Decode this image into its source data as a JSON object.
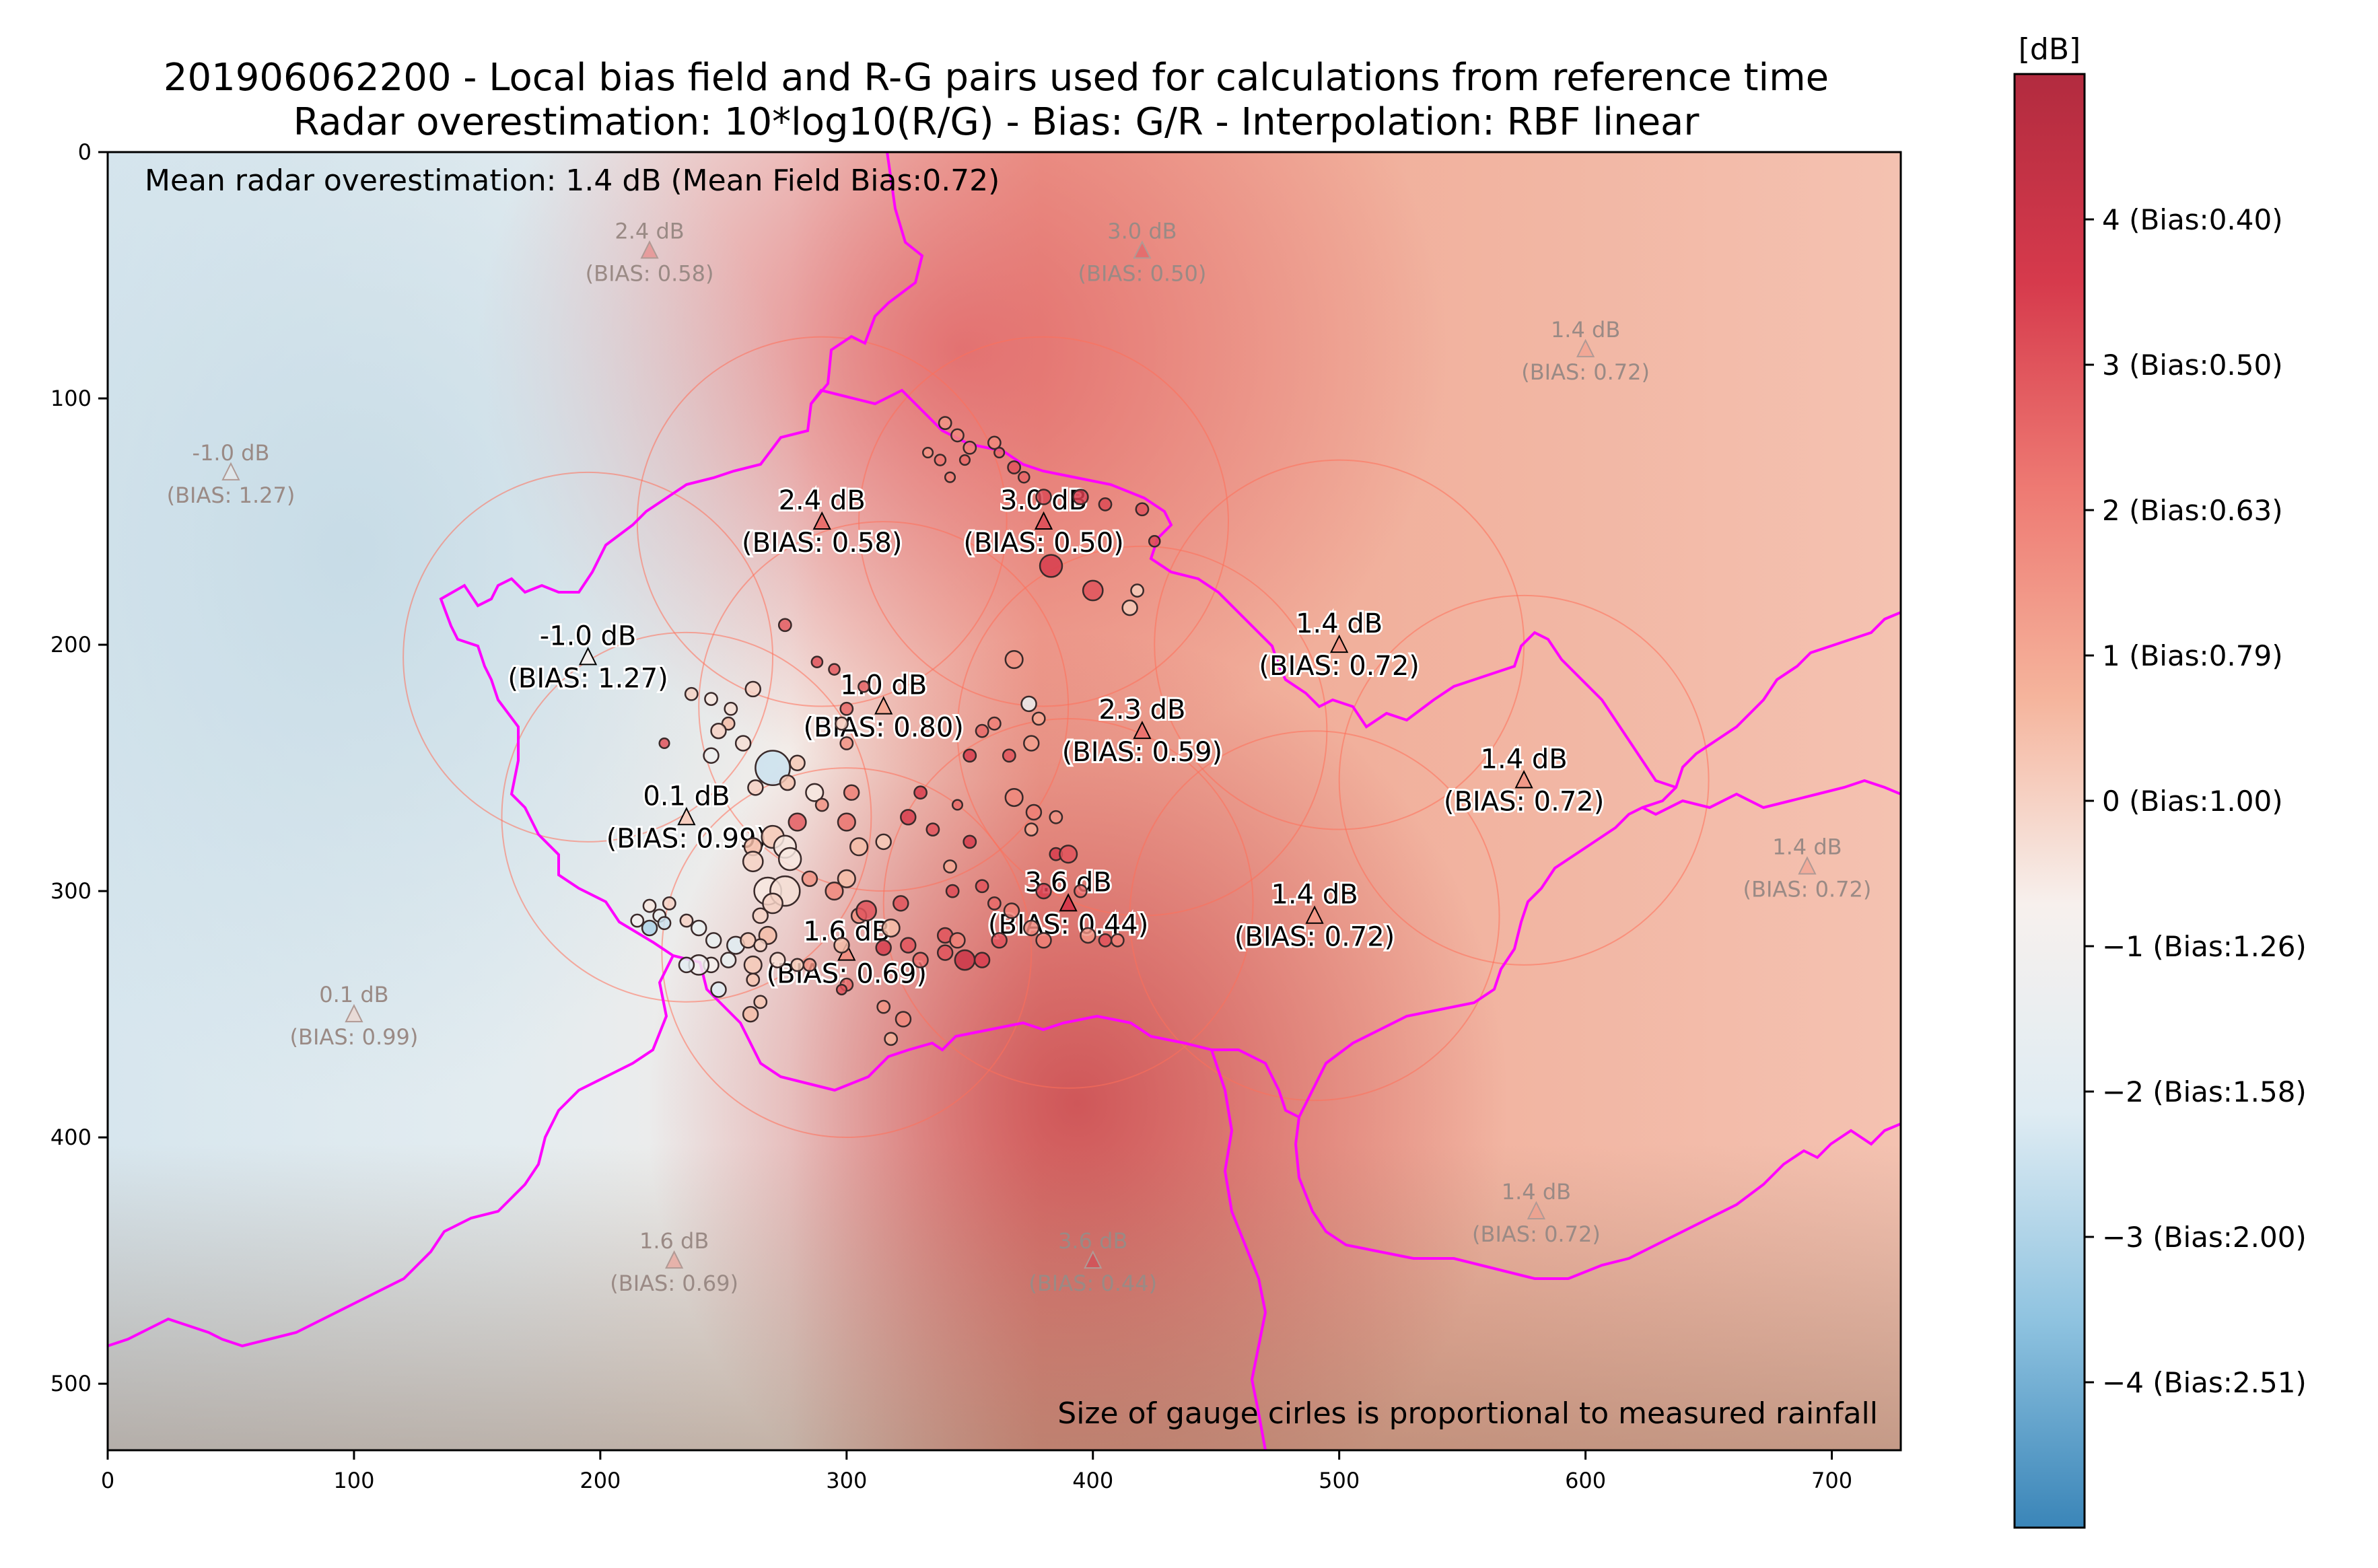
{
  "chart_data": {
    "type": "scatter",
    "title_line1": "201906062200 - Local bias field and R-G pairs used for calculations from reference time",
    "title_line2": "Radar overestimation: 10*log10(R/G) - Bias: G/R  - Interpolation: RBF linear",
    "mean_text": "Mean radar overestimation: 1.4 dB (Mean Field Bias:0.72)",
    "footnote": "Size of gauge cirles is proportional to measured rainfall",
    "xlim": [
      0,
      728
    ],
    "ylim": [
      527,
      0
    ],
    "xticks": [
      0,
      100,
      200,
      300,
      400,
      500,
      600,
      700
    ],
    "yticks": [
      0,
      100,
      200,
      300,
      400,
      500
    ],
    "colorbar": {
      "label": "[dB]",
      "range": [
        -5,
        5
      ],
      "ticks": [
        {
          "value": 4,
          "label": "4 (Bias:0.40)"
        },
        {
          "value": 3,
          "label": "3 (Bias:0.50)"
        },
        {
          "value": 2,
          "label": "2 (Bias:0.63)"
        },
        {
          "value": 1,
          "label": "1 (Bias:0.79)"
        },
        {
          "value": 0,
          "label": "0 (Bias:1.00)"
        },
        {
          "value": -1,
          "label": "−1 (Bias:1.26)"
        },
        {
          "value": -2,
          "label": "−2 (Bias:1.58)"
        },
        {
          "value": -3,
          "label": "−3 (Bias:2.00)"
        },
        {
          "value": -4,
          "label": "−4 (Bias:2.51)"
        }
      ],
      "stops": [
        "#3a85b8",
        "#8fc3e0",
        "#dfecf3",
        "#f7f0ed",
        "#f5b49c",
        "#ee7a73",
        "#d63a4c",
        "#b22b3f"
      ]
    },
    "radars": [
      {
        "x": 290,
        "y": 150,
        "db": "2.4 dB",
        "bias": "(BIAS: 0.58)",
        "value": 2.4,
        "active": true
      },
      {
        "x": 380,
        "y": 150,
        "db": "3.0 dB",
        "bias": "(BIAS: 0.50)",
        "value": 3.0,
        "active": true
      },
      {
        "x": 195,
        "y": 205,
        "db": "-1.0 dB",
        "bias": "(BIAS: 1.27)",
        "value": -1.0,
        "active": true
      },
      {
        "x": 315,
        "y": 225,
        "db": "1.0 dB",
        "bias": "(BIAS: 0.80)",
        "value": 1.0,
        "active": true
      },
      {
        "x": 500,
        "y": 200,
        "db": "1.4 dB",
        "bias": "(BIAS: 0.72)",
        "value": 1.4,
        "active": true
      },
      {
        "x": 420,
        "y": 235,
        "db": "2.3 dB",
        "bias": "(BIAS: 0.59)",
        "value": 2.3,
        "active": true
      },
      {
        "x": 575,
        "y": 255,
        "db": "1.4 dB",
        "bias": "(BIAS: 0.72)",
        "value": 1.4,
        "active": true
      },
      {
        "x": 235,
        "y": 270,
        "db": "0.1 dB",
        "bias": "(BIAS: 0.99)",
        "value": 0.1,
        "active": true
      },
      {
        "x": 390,
        "y": 305,
        "db": "3.6 dB",
        "bias": "(BIAS: 0.44)",
        "value": 3.6,
        "active": true
      },
      {
        "x": 490,
        "y": 310,
        "db": "1.4 dB",
        "bias": "(BIAS: 0.72)",
        "value": 1.4,
        "active": true
      },
      {
        "x": 300,
        "y": 325,
        "db": "1.6 dB",
        "bias": "(BIAS: 0.69)",
        "value": 1.6,
        "active": true
      },
      {
        "x": 220,
        "y": 40,
        "db": "2.4 dB",
        "bias": "(BIAS: 0.58)",
        "value": 2.4,
        "active": false
      },
      {
        "x": 420,
        "y": 40,
        "db": "3.0 dB",
        "bias": "(BIAS: 0.50)",
        "value": 3.0,
        "active": false
      },
      {
        "x": 600,
        "y": 80,
        "db": "1.4 dB",
        "bias": "(BIAS: 0.72)",
        "value": 1.4,
        "active": false
      },
      {
        "x": 50,
        "y": 130,
        "db": "-1.0 dB",
        "bias": "(BIAS: 1.27)",
        "value": -1.0,
        "active": false
      },
      {
        "x": 690,
        "y": 290,
        "db": "1.4 dB",
        "bias": "(BIAS: 0.72)",
        "value": 1.4,
        "active": false
      },
      {
        "x": 100,
        "y": 350,
        "db": "0.1 dB",
        "bias": "(BIAS: 0.99)",
        "value": 0.1,
        "active": false
      },
      {
        "x": 580,
        "y": 430,
        "db": "1.4 dB",
        "bias": "(BIAS: 0.72)",
        "value": 1.4,
        "active": false
      },
      {
        "x": 230,
        "y": 450,
        "db": "1.6 dB",
        "bias": "(BIAS: 0.69)",
        "value": 1.6,
        "active": false
      },
      {
        "x": 400,
        "y": 450,
        "db": "3.6 dB",
        "bias": "(BIAS: 0.44)",
        "value": 3.6,
        "active": false
      }
    ],
    "gauges": [
      [
        340,
        110,
        1.5,
        2.5
      ],
      [
        345,
        115,
        1.8,
        2.5
      ],
      [
        350,
        120,
        2.0,
        2.5
      ],
      [
        348,
        125,
        2.5,
        2.0
      ],
      [
        338,
        125,
        2.2,
        2.2
      ],
      [
        333,
        122,
        1.5,
        2.0
      ],
      [
        342,
        132,
        2.0,
        2.0
      ],
      [
        360,
        118,
        1.8,
        2.5
      ],
      [
        362,
        122,
        2.5,
        2.0
      ],
      [
        368,
        128,
        3.0,
        2.5
      ],
      [
        372,
        132,
        2.6,
        2.2
      ],
      [
        380,
        140,
        3.2,
        3.0
      ],
      [
        395,
        140,
        3.5,
        3.0
      ],
      [
        405,
        143,
        3.2,
        2.5
      ],
      [
        420,
        145,
        3.0,
        2.5
      ],
      [
        425,
        158,
        3.2,
        2.2
      ],
      [
        418,
        178,
        0.2,
        2.5
      ],
      [
        415,
        185,
        0.2,
        3.0
      ],
      [
        400,
        178,
        3.0,
        4.0
      ],
      [
        383,
        168,
        3.5,
        4.5
      ],
      [
        275,
        192,
        2.8,
        2.5
      ],
      [
        288,
        207,
        3.0,
        2.2
      ],
      [
        295,
        210,
        2.8,
        2.2
      ],
      [
        307,
        217,
        2.7,
        2.2
      ],
      [
        262,
        218,
        0.0,
        3.0
      ],
      [
        237,
        220,
        0.0,
        2.5
      ],
      [
        245,
        222,
        -0.5,
        2.5
      ],
      [
        253,
        226,
        -0.3,
        2.5
      ],
      [
        252,
        232,
        0.5,
        2.5
      ],
      [
        300,
        226,
        2.5,
        2.5
      ],
      [
        298,
        232,
        0.1,
        2.5
      ],
      [
        245,
        245,
        -1.3,
        3.0
      ],
      [
        248,
        235,
        0.0,
        3.0
      ],
      [
        258,
        240,
        -0.3,
        3.0
      ],
      [
        270,
        250,
        -2.5,
        7.0
      ],
      [
        280,
        248,
        0.2,
        3.0
      ],
      [
        300,
        240,
        1.5,
        2.5
      ],
      [
        302,
        260,
        2.0,
        3.0
      ],
      [
        276,
        256,
        0.3,
        3.0
      ],
      [
        263,
        258,
        0.0,
        3.0
      ],
      [
        287,
        260,
        -0.5,
        3.5
      ],
      [
        290,
        265,
        1.5,
        2.5
      ],
      [
        280,
        272,
        2.8,
        3.5
      ],
      [
        270,
        278,
        0.2,
        4.5
      ],
      [
        275,
        282,
        -0.5,
        4.5
      ],
      [
        262,
        282,
        0.5,
        3.5
      ],
      [
        277,
        287,
        -0.5,
        4.5
      ],
      [
        262,
        288,
        0.0,
        4.0
      ],
      [
        300,
        272,
        2.3,
        3.5
      ],
      [
        305,
        282,
        0.5,
        3.5
      ],
      [
        315,
        280,
        0.2,
        3.0
      ],
      [
        300,
        295,
        0.5,
        3.5
      ],
      [
        295,
        300,
        1.8,
        3.5
      ],
      [
        285,
        295,
        1.5,
        3.0
      ],
      [
        268,
        300,
        -0.5,
        5.5
      ],
      [
        275,
        300,
        -0.3,
        6.0
      ],
      [
        270,
        305,
        0.0,
        4.0
      ],
      [
        265,
        310,
        0.0,
        3.0
      ],
      [
        268,
        318,
        0.5,
        3.5
      ],
      [
        298,
        322,
        0.5,
        3.0
      ],
      [
        305,
        310,
        1.5,
        3.0
      ],
      [
        308,
        308,
        3.0,
        4.0
      ],
      [
        318,
        315,
        0.5,
        3.5
      ],
      [
        322,
        305,
        3.0,
        3.0
      ],
      [
        325,
        322,
        3.0,
        3.0
      ],
      [
        330,
        328,
        2.5,
        3.0
      ],
      [
        315,
        323,
        3.5,
        3.0
      ],
      [
        325,
        270,
        3.5,
        3.0
      ],
      [
        330,
        260,
        3.5,
        2.5
      ],
      [
        335,
        275,
        3.0,
        2.5
      ],
      [
        345,
        265,
        2.5,
        2.0
      ],
      [
        350,
        280,
        3.5,
        2.5
      ],
      [
        342,
        290,
        1.0,
        2.5
      ],
      [
        343,
        300,
        3.2,
        2.5
      ],
      [
        355,
        298,
        3.0,
        2.5
      ],
      [
        360,
        305,
        2.5,
        2.5
      ],
      [
        340,
        318,
        3.0,
        3.0
      ],
      [
        345,
        320,
        2.0,
        3.0
      ],
      [
        340,
        325,
        3.0,
        3.0
      ],
      [
        348,
        328,
        4.0,
        4.0
      ],
      [
        355,
        328,
        3.5,
        3.0
      ],
      [
        362,
        320,
        3.0,
        3.0
      ],
      [
        367,
        308,
        2.0,
        3.0
      ],
      [
        380,
        300,
        3.5,
        3.0
      ],
      [
        385,
        285,
        3.5,
        2.5
      ],
      [
        375,
        275,
        1.0,
        2.5
      ],
      [
        385,
        270,
        1.5,
        2.5
      ],
      [
        390,
        285,
        3.0,
        3.5
      ],
      [
        375,
        240,
        1.2,
        3.0
      ],
      [
        378,
        230,
        1.0,
        2.5
      ],
      [
        366,
        245,
        3.0,
        2.5
      ],
      [
        374,
        224,
        -1.5,
        3.0
      ],
      [
        368,
        206,
        1.5,
        3.5
      ],
      [
        376,
        268,
        2.0,
        3.0
      ],
      [
        368,
        262,
        1.8,
        3.5
      ],
      [
        350,
        245,
        3.5,
        2.5
      ],
      [
        355,
        235,
        2.5,
        2.5
      ],
      [
        360,
        232,
        2.0,
        2.5
      ],
      [
        395,
        300,
        2.5,
        2.5
      ],
      [
        398,
        318,
        1.5,
        3.0
      ],
      [
        405,
        320,
        3.0,
        2.5
      ],
      [
        410,
        320,
        2.0,
        2.5
      ],
      [
        375,
        315,
        1.8,
        3.0
      ],
      [
        380,
        320,
        2.0,
        3.0
      ],
      [
        215,
        312,
        -1.0,
        2.5
      ],
      [
        220,
        306,
        -0.5,
        2.5
      ],
      [
        224,
        310,
        -1.5,
        2.5
      ],
      [
        228,
        305,
        0.0,
        2.5
      ],
      [
        235,
        312,
        0.0,
        2.5
      ],
      [
        240,
        315,
        -1.5,
        3.0
      ],
      [
        246,
        320,
        -1.5,
        3.0
      ],
      [
        255,
        322,
        -2.0,
        3.5
      ],
      [
        260,
        320,
        0.2,
        3.0
      ],
      [
        265,
        322,
        0.0,
        2.5
      ],
      [
        252,
        328,
        -1.5,
        3.0
      ],
      [
        262,
        330,
        0.2,
        3.5
      ],
      [
        245,
        330,
        -0.8,
        3.0
      ],
      [
        248,
        340,
        -2.0,
        3.0
      ],
      [
        272,
        328,
        -0.2,
        3.0
      ],
      [
        262,
        336,
        0.3,
        2.5
      ],
      [
        280,
        330,
        0.2,
        2.5
      ],
      [
        285,
        330,
        1.5,
        2.5
      ],
      [
        240,
        330,
        -1.0,
        4.0
      ],
      [
        235,
        330,
        -1.8,
        3.0
      ],
      [
        220,
        315,
        -3.0,
        3.0
      ],
      [
        226,
        313,
        -2.5,
        2.5
      ],
      [
        265,
        345,
        0.3,
        2.5
      ],
      [
        261,
        350,
        0.5,
        3.0
      ],
      [
        300,
        338,
        2.5,
        2.5
      ],
      [
        315,
        347,
        1.5,
        2.5
      ],
      [
        323,
        352,
        1.8,
        3.0
      ],
      [
        318,
        360,
        0.8,
        2.5
      ],
      [
        298,
        340,
        3.0,
        2.0
      ],
      [
        226,
        240,
        3.0,
        2.0
      ]
    ],
    "circles": [
      {
        "cx": 290,
        "cy": 150,
        "r": 75
      },
      {
        "cx": 380,
        "cy": 150,
        "r": 75
      },
      {
        "cx": 195,
        "cy": 205,
        "r": 75
      },
      {
        "cx": 315,
        "cy": 225,
        "r": 75
      },
      {
        "cx": 500,
        "cy": 200,
        "r": 75
      },
      {
        "cx": 420,
        "cy": 235,
        "r": 75
      },
      {
        "cx": 575,
        "cy": 255,
        "r": 75
      },
      {
        "cx": 235,
        "cy": 270,
        "r": 75
      },
      {
        "cx": 390,
        "cy": 305,
        "r": 75
      },
      {
        "cx": 490,
        "cy": 310,
        "r": 75
      },
      {
        "cx": 300,
        "cy": 325,
        "r": 75
      }
    ]
  }
}
